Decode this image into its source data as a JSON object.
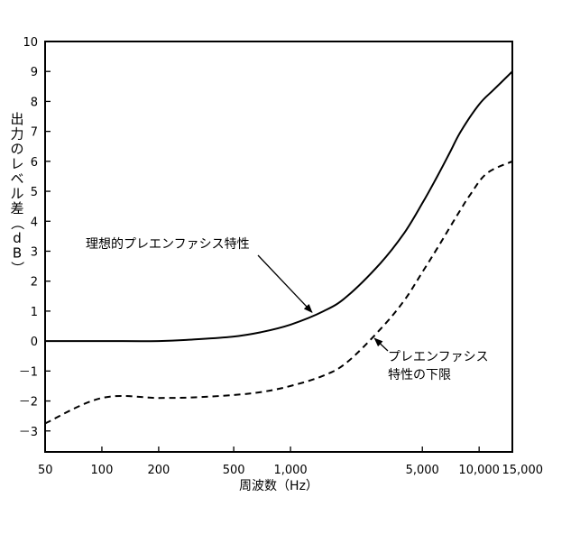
{
  "chart_data": {
    "type": "line",
    "title": "",
    "xlabel": "周波数（Hz）",
    "ylabel": "出力のレベル差（dB）",
    "xscale": "log",
    "xlim": [
      50,
      15000
    ],
    "ylim": [
      -3.7,
      10
    ],
    "grid": false,
    "x_ticks": [
      50,
      100,
      200,
      500,
      1000,
      5000,
      10000,
      15000
    ],
    "x_tick_labels": [
      "50",
      "100",
      "200",
      "500",
      "1,000",
      "5,000",
      "10,000",
      "15,000"
    ],
    "y_ticks": [
      -3,
      -2,
      -1,
      0,
      1,
      2,
      3,
      4,
      5,
      6,
      7,
      8,
      9,
      10
    ],
    "y_tick_labels": [
      "－3",
      "－2",
      "－1",
      "0",
      "1",
      "2",
      "3",
      "4",
      "5",
      "6",
      "7",
      "8",
      "9",
      "10"
    ],
    "series": [
      {
        "name": "理想的プレエンファシス特性",
        "style": "solid",
        "color": "#000000",
        "x": [
          50,
          100,
          200,
          300,
          500,
          700,
          1000,
          1500,
          2000,
          3000,
          4000,
          5000,
          6000,
          7000,
          8000,
          10000,
          12000,
          15000
        ],
        "y": [
          0,
          0,
          0,
          0.05,
          0.15,
          0.3,
          0.55,
          1.0,
          1.5,
          2.6,
          3.6,
          4.6,
          5.5,
          6.3,
          7.0,
          7.9,
          8.4,
          9.0
        ]
      },
      {
        "name": "プレエンファシス特性の下限",
        "style": "dashed",
        "color": "#000000",
        "x": [
          50,
          100,
          200,
          300,
          500,
          700,
          1000,
          1500,
          2000,
          3000,
          4000,
          5000,
          6000,
          7000,
          8000,
          9000,
          11000,
          15000
        ],
        "y": [
          -2.75,
          -1.9,
          -1.9,
          -1.88,
          -1.8,
          -1.7,
          -1.5,
          -1.15,
          -0.7,
          0.4,
          1.35,
          2.3,
          3.1,
          3.8,
          4.4,
          4.9,
          5.6,
          6.0
        ]
      }
    ],
    "annotations": [
      {
        "text": "理想的プレエンファシス特性",
        "points_to": [
          1300,
          0.9
        ]
      },
      {
        "lines": [
          "プレエンファシス",
          "特性の下限"
        ],
        "points_to": [
          2700,
          0.15
        ]
      }
    ]
  }
}
